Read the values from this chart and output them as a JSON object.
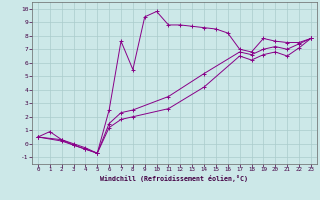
{
  "background_color": "#cce8e8",
  "grid_color": "#aacccc",
  "line_color": "#880088",
  "xlabel": "Windchill (Refroidissement éolien,°C)",
  "xlim": [
    -0.5,
    23.5
  ],
  "ylim": [
    -1.5,
    10.5
  ],
  "yticks": [
    -1,
    0,
    1,
    2,
    3,
    4,
    5,
    6,
    7,
    8,
    9,
    10
  ],
  "xticks": [
    0,
    1,
    2,
    3,
    4,
    5,
    6,
    7,
    8,
    9,
    10,
    11,
    12,
    13,
    14,
    15,
    16,
    17,
    18,
    19,
    20,
    21,
    22,
    23
  ],
  "line1_x": [
    0,
    1,
    2,
    3,
    4,
    5,
    6,
    7,
    8,
    9,
    10,
    11,
    12,
    13,
    14,
    15,
    16,
    17,
    18,
    19,
    20,
    21,
    22,
    23
  ],
  "line1_y": [
    0.5,
    0.9,
    0.3,
    -0.1,
    -0.4,
    -0.7,
    2.5,
    7.6,
    5.5,
    9.4,
    9.8,
    8.8,
    8.8,
    8.7,
    8.6,
    8.5,
    8.2,
    7.0,
    6.8,
    7.8,
    7.6,
    7.5,
    7.5,
    7.8
  ],
  "line2_x": [
    0,
    2,
    3,
    4,
    5,
    6,
    7,
    8,
    11,
    14,
    17,
    18,
    19,
    20,
    21,
    22,
    23
  ],
  "line2_y": [
    0.5,
    0.3,
    0.0,
    -0.3,
    -0.7,
    1.5,
    2.3,
    2.5,
    3.5,
    5.2,
    6.8,
    6.6,
    7.0,
    7.2,
    7.0,
    7.4,
    7.8
  ],
  "line3_x": [
    0,
    2,
    3,
    4,
    5,
    6,
    7,
    8,
    11,
    14,
    17,
    18,
    19,
    20,
    21,
    22,
    23
  ],
  "line3_y": [
    0.5,
    0.2,
    -0.1,
    -0.4,
    -0.7,
    1.2,
    1.8,
    2.0,
    2.6,
    4.2,
    6.5,
    6.2,
    6.6,
    6.8,
    6.5,
    7.1,
    7.8
  ]
}
